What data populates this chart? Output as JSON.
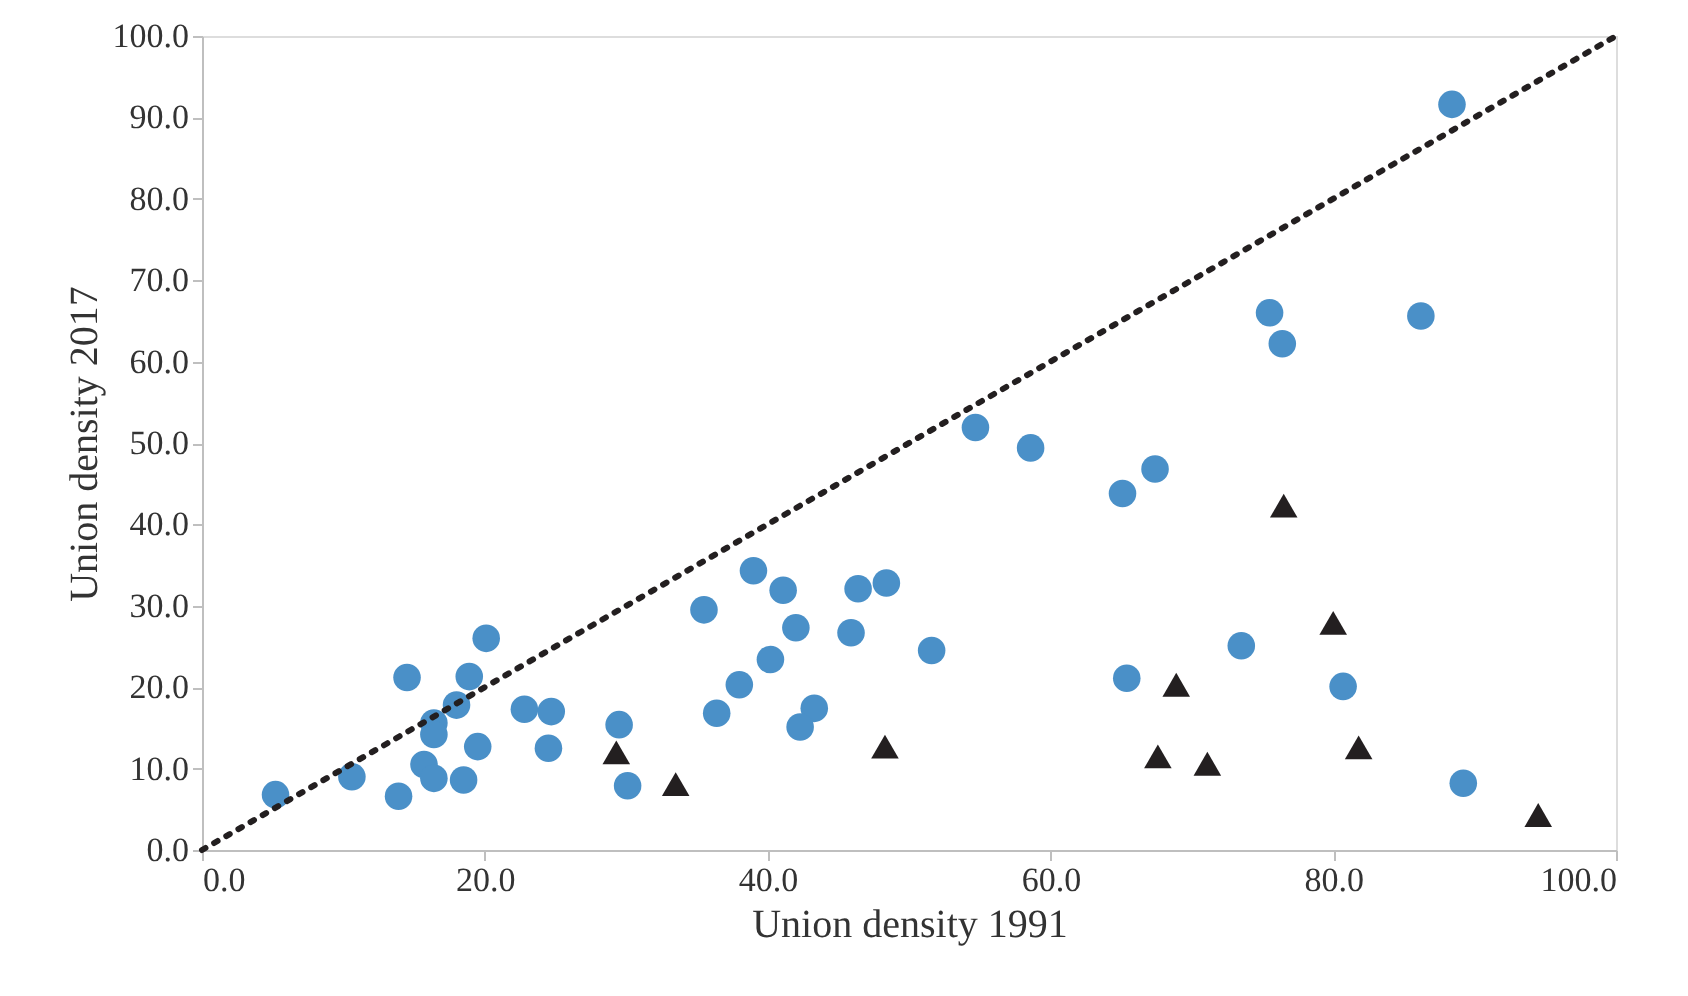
{
  "chart_data": {
    "type": "scatter",
    "xlabel": "Union density 1991",
    "ylabel": "Union density 2017",
    "xlim": [
      0,
      100
    ],
    "ylim": [
      0,
      100
    ],
    "xticks": [
      {
        "value": 0,
        "label": "0.0"
      },
      {
        "value": 20,
        "label": "20.0"
      },
      {
        "value": 40,
        "label": "40.0"
      },
      {
        "value": 60,
        "label": "60.0"
      },
      {
        "value": 80,
        "label": "80.0"
      },
      {
        "value": 100,
        "label": "100.0"
      }
    ],
    "yticks": [
      {
        "value": 0,
        "label": "0.0"
      },
      {
        "value": 10,
        "label": "10.0"
      },
      {
        "value": 20,
        "label": "20.0"
      },
      {
        "value": 30,
        "label": "30.0"
      },
      {
        "value": 40,
        "label": "40.0"
      },
      {
        "value": 50,
        "label": "50.0"
      },
      {
        "value": 60,
        "label": "60.0"
      },
      {
        "value": 70,
        "label": "70.0"
      },
      {
        "value": 80,
        "label": "80.0"
      },
      {
        "value": 90,
        "label": "90.0"
      },
      {
        "value": 100,
        "label": "100.0"
      }
    ],
    "grid": false,
    "series": [
      {
        "marker": "circle",
        "color": "#4a90c8",
        "x": [
          5.2,
          10.6,
          13.9,
          14.5,
          15.7,
          16.4,
          16.4,
          16.4,
          18.0,
          18.9,
          18.5,
          19.5,
          20.1,
          22.8,
          24.7,
          24.5,
          29.5,
          30.1,
          54.7,
          58.6,
          39.0,
          41.1,
          35.5,
          46.4,
          48.4,
          42.0,
          45.9,
          40.2,
          51.6,
          38.0,
          36.4,
          43.3,
          42.3,
          75.5,
          76.4,
          86.2,
          67.4,
          65.1,
          73.5,
          65.4,
          80.7,
          89.2,
          88.4
        ],
        "values": [
          6.8,
          9.0,
          6.6,
          21.2,
          10.5,
          8.8,
          15.6,
          14.2,
          17.8,
          21.3,
          8.6,
          12.7,
          26.0,
          17.3,
          17.0,
          12.5,
          15.4,
          7.9,
          51.9,
          49.4,
          34.3,
          31.9,
          29.5,
          32.1,
          32.8,
          27.3,
          26.7,
          23.4,
          24.5,
          20.3,
          16.8,
          17.4,
          15.1,
          66.0,
          62.2,
          65.6,
          46.8,
          43.8,
          25.1,
          21.1,
          20.1,
          8.2,
          91.6
        ]
      },
      {
        "marker": "triangle",
        "color": "#231f20",
        "x": [
          29.3,
          33.5,
          48.3,
          76.5,
          80.0,
          68.9,
          67.6,
          71.1,
          81.8,
          94.5
        ],
        "values": [
          12.0,
          8.1,
          12.7,
          42.3,
          27.9,
          20.3,
          11.5,
          10.6,
          12.6,
          4.3
        ]
      },
      {
        "type": "line",
        "line_style": "dotted",
        "marker": "none",
        "color": "#231f20",
        "x": [
          0,
          100
        ],
        "values": [
          0,
          100
        ]
      }
    ]
  }
}
